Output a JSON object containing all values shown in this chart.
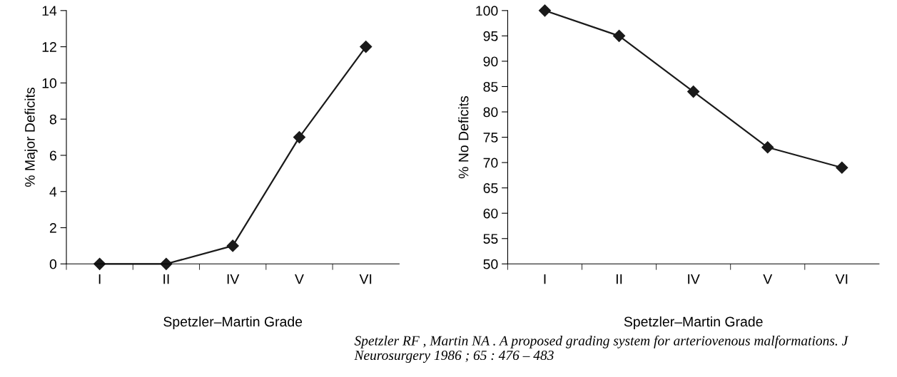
{
  "chart_data": [
    {
      "type": "line",
      "xlabel": "Spetzler–Martin Grade",
      "ylabel": "% Major Deficits",
      "categories": [
        "I",
        "II",
        "IV",
        "V",
        "VI"
      ],
      "series": [
        {
          "color": "#1a1a1a",
          "values": [
            0,
            0,
            1,
            7,
            12
          ]
        }
      ],
      "ylim": [
        0,
        14
      ],
      "yticks": [
        0,
        2,
        4,
        6,
        8,
        10,
        12,
        14
      ],
      "marker": "diamond",
      "line_style": "solid",
      "grid": false,
      "legend": false
    },
    {
      "type": "line",
      "xlabel": "Spetzler–Martin Grade",
      "ylabel": "% No Deficits",
      "categories": [
        "I",
        "II",
        "IV",
        "V",
        "VI"
      ],
      "series": [
        {
          "color": "#1a1a1a",
          "values": [
            100,
            95,
            84,
            73,
            69
          ]
        }
      ],
      "ylim": [
        50,
        100
      ],
      "yticks": [
        50,
        55,
        60,
        65,
        70,
        75,
        80,
        85,
        90,
        95,
        100
      ],
      "marker": "diamond",
      "line_style": "solid",
      "grid": false,
      "legend": false,
      "annotations": [
        "Spetzler RF , Martin NA . A proposed grading system for arteriovenous malformations. J Neurosurgery 1986 ; 65 : 476 – 483"
      ]
    }
  ]
}
